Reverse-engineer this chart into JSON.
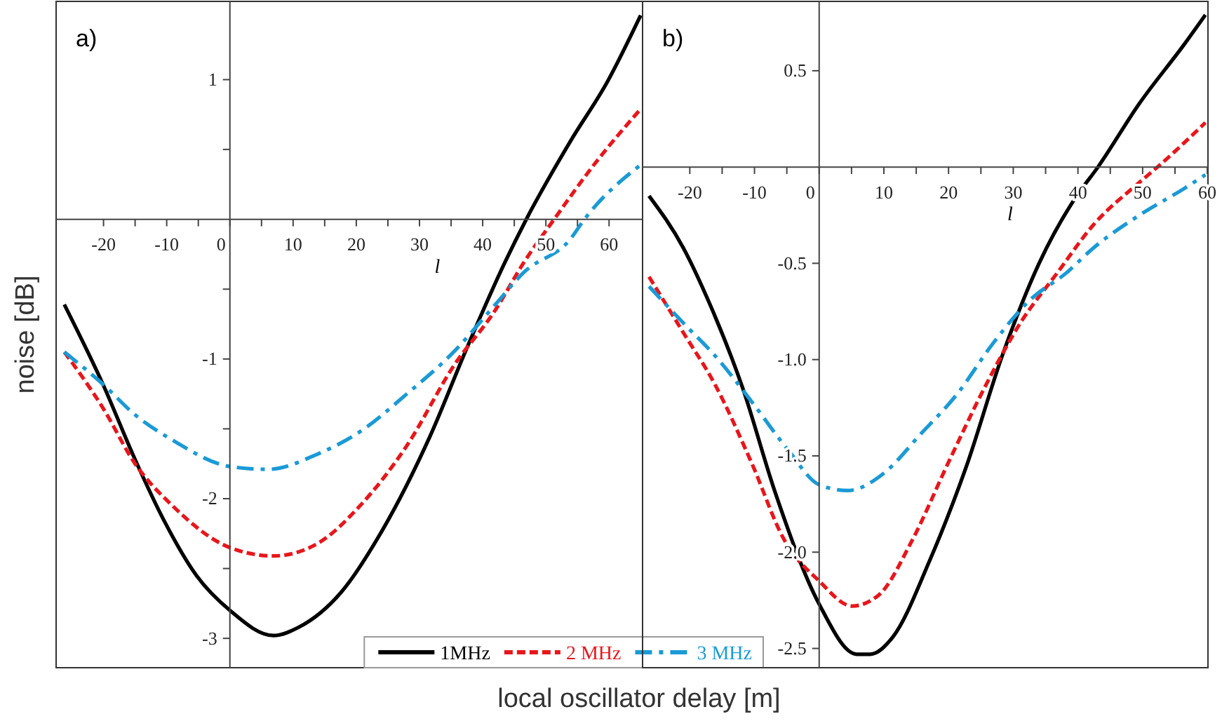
{
  "chart_data": [
    {
      "type": "line",
      "xlabel": "l",
      "ylabel": "noise [dB]",
      "annotations": [
        "a)",
        "local oscillator delay [m]"
      ],
      "legend": "bottom right",
      "xlim": [
        -27.5,
        65.3
      ],
      "ylim": [
        -3.21,
        1.56
      ],
      "xticks": [
        -20,
        {
          "value": -15,
          "label": null
        },
        -10,
        {
          "value": -5,
          "label": null
        },
        0,
        {
          "value": 5,
          "label": null
        },
        10,
        {
          "value": 15,
          "label": null
        },
        20,
        {
          "value": 25,
          "label": null
        },
        30,
        {
          "value": 35,
          "label": null
        },
        40,
        {
          "value": 45,
          "label": null
        },
        50,
        {
          "value": 55,
          "label": null
        },
        60
      ],
      "yticks": [
        -3,
        {
          "value": -2.5,
          "label": null
        },
        -2,
        {
          "value": -1.5,
          "label": null
        },
        -1,
        {
          "value": -0.5,
          "label": null
        },
        {
          "value": 0.5,
          "label": null
        },
        1
      ],
      "series": [
        {
          "name": "1MHz",
          "color": "#000000",
          "line_style": "solid",
          "x": [
            -26.2,
            -20.1,
            -15,
            -10.5,
            -5.3,
            0,
            6.9,
            10.9,
            17.6,
            24.2,
            31.7,
            37.6,
            43.5,
            46.9,
            53.9,
            59.8,
            65
          ],
          "values": [
            -0.61,
            -1.18,
            -1.72,
            -2.15,
            -2.55,
            -2.8,
            -2.98,
            -2.92,
            -2.67,
            -2.22,
            -1.55,
            -0.91,
            -0.31,
            0,
            0.56,
            0.99,
            1.46
          ]
        },
        {
          "name": "2 MHz",
          "color": "#e8161b",
          "line_style": "dashed",
          "x": [
            -26.2,
            -20.1,
            -15,
            -9.1,
            0,
            6.9,
            13.9,
            20.6,
            28,
            35.4,
            42,
            46.5,
            51.3,
            57.6,
            65
          ],
          "values": [
            -0.95,
            -1.35,
            -1.75,
            -2.05,
            -2.35,
            -2.41,
            -2.32,
            -2.05,
            -1.62,
            -1.05,
            -0.65,
            -0.31,
            0,
            0.39,
            0.79
          ]
        },
        {
          "name": "3 MHz",
          "color": "#1a9ad6",
          "line_style": "dashdot",
          "x": [
            -26.2,
            -20.1,
            -15,
            -9.1,
            0,
            6.1,
            13.9,
            20.6,
            28,
            35.4,
            42,
            46.5,
            53.9,
            56.1,
            65
          ],
          "values": [
            -0.95,
            -1.18,
            -1.4,
            -1.58,
            -1.77,
            -1.79,
            -1.68,
            -1.52,
            -1.25,
            -0.95,
            -0.61,
            -0.38,
            -0.14,
            0,
            0.39
          ]
        }
      ]
    },
    {
      "type": "line",
      "xlabel": "l",
      "annotations": [
        "b)"
      ],
      "xlim": [
        -27.3,
        60.1
      ],
      "ylim": [
        -2.6,
        0.86
      ],
      "xticks": [
        -20,
        {
          "value": -15,
          "label": null
        },
        -10,
        {
          "value": -5,
          "label": null
        },
        0,
        {
          "value": 5,
          "label": null
        },
        10,
        {
          "value": 15,
          "label": null
        },
        20,
        {
          "value": 25,
          "label": null
        },
        30,
        {
          "value": 35,
          "label": null
        },
        40,
        {
          "value": 45,
          "label": null
        },
        50,
        {
          "value": 55,
          "label": null
        },
        60
      ],
      "yticks": [
        {
          "value": -2.5,
          "label": "-2.5"
        },
        {
          "value": -2,
          "label": "-2.0"
        },
        {
          "value": -1.5,
          "label": "-1.5"
        },
        {
          "value": -1,
          "label": "-1.0"
        },
        {
          "value": -0.5,
          "label": "-0.5"
        },
        {
          "value": 0.5,
          "label": "0.5"
        }
      ],
      "series": [
        {
          "color": "#000000",
          "line_style": "solid",
          "x": [
            -26.3,
            -21,
            -16.8,
            -11.8,
            -6.9,
            0,
            5.8,
            7.9,
            11.4,
            17,
            22.7,
            28.3,
            34,
            39.6,
            43.1,
            49.5,
            56.5,
            59.7
          ],
          "values": [
            -0.15,
            -0.42,
            -0.72,
            -1.15,
            -1.68,
            -2.27,
            -2.53,
            -2.53,
            -2.44,
            -2.05,
            -1.56,
            -0.98,
            -0.5,
            -0.16,
            0,
            0.33,
            0.64,
            0.79
          ]
        },
        {
          "color": "#e8161b",
          "line_style": "dashed",
          "x": [
            -26.3,
            -21,
            -16.1,
            -10.4,
            -5.5,
            0,
            5.1,
            9.3,
            14.2,
            19.9,
            25.5,
            31.1,
            36.8,
            42.4,
            49.5,
            52.3,
            59.7
          ],
          "values": [
            -0.57,
            -0.86,
            -1.13,
            -1.54,
            -1.93,
            -2.15,
            -2.28,
            -2.22,
            -1.95,
            -1.54,
            -1.15,
            -0.81,
            -0.55,
            -0.3,
            -0.08,
            0,
            0.23
          ]
        },
        {
          "color": "#1a9ad6",
          "line_style": "dashdot",
          "x": [
            -26.3,
            -21,
            -16.1,
            -10.4,
            -4.8,
            0,
            4.4,
            10,
            15.6,
            21.3,
            27,
            32.6,
            38.2,
            42.4,
            49.5,
            56.5,
            59.7
          ],
          "values": [
            -0.62,
            -0.81,
            -0.98,
            -1.22,
            -1.47,
            -1.65,
            -1.68,
            -1.59,
            -1.39,
            -1.18,
            -0.91,
            -0.69,
            -0.55,
            -0.42,
            -0.25,
            -0.11,
            -0.04
          ]
        }
      ]
    }
  ]
}
